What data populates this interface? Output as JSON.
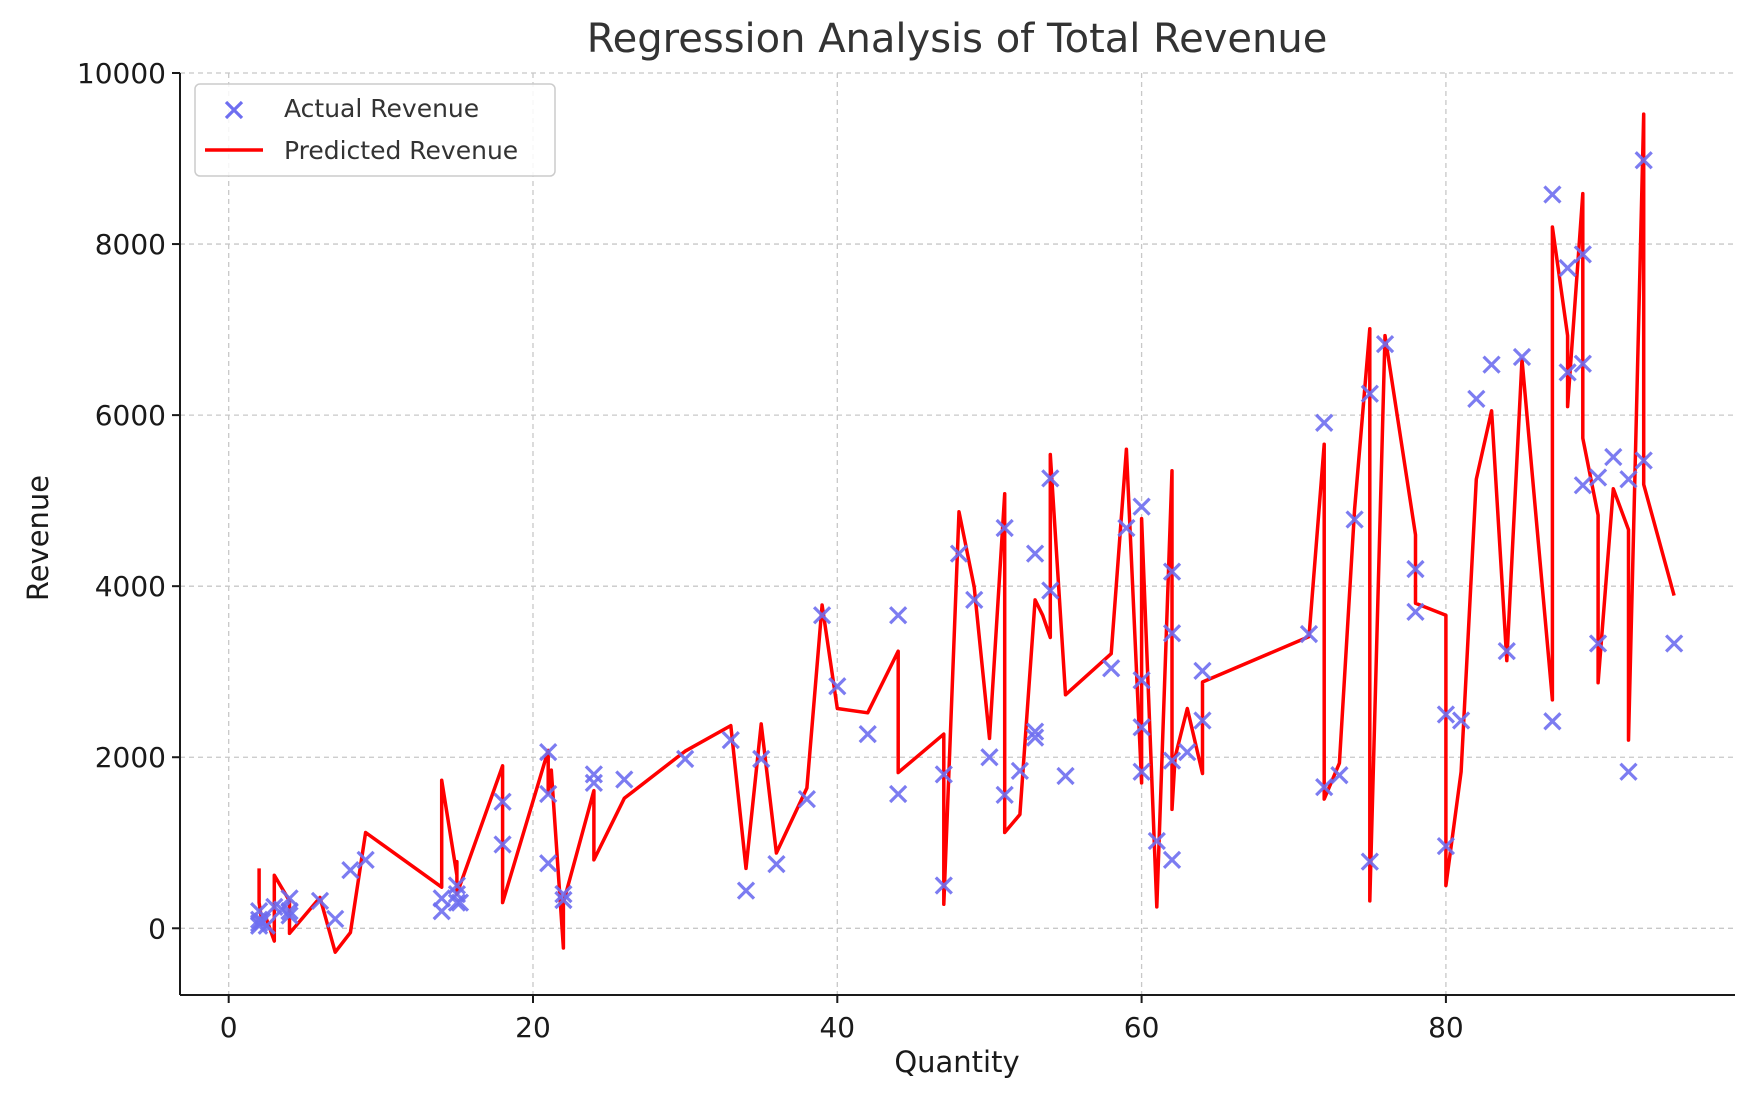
{
  "chart_data": {
    "type": "scatter",
    "title": "Regression Analysis of Total Revenue",
    "xlabel": "Quantity",
    "ylabel": "Revenue",
    "xlim": [
      -3.2,
      99
    ],
    "ylim": [
      -780,
      10000
    ],
    "xticks": [
      0,
      20,
      40,
      60,
      80
    ],
    "yticks": [
      0,
      2000,
      4000,
      6000,
      8000,
      10000
    ],
    "grid": true,
    "legend_position": "top-left",
    "colors": {
      "actual": "#6e6ef0",
      "predicted": "#ff0000"
    },
    "series": [
      {
        "name": "Actual Revenue",
        "kind": "scatter",
        "marker": "x",
        "points": [
          [
            2,
            200
          ],
          [
            2,
            100
          ],
          [
            2,
            60
          ],
          [
            2,
            30
          ],
          [
            2.2,
            80
          ],
          [
            2.5,
            30
          ],
          [
            3,
            250
          ],
          [
            3.5,
            220
          ],
          [
            4,
            350
          ],
          [
            4,
            150
          ],
          [
            4,
            200
          ],
          [
            6,
            320
          ],
          [
            7,
            110
          ],
          [
            8,
            680
          ],
          [
            9,
            800
          ],
          [
            14,
            200
          ],
          [
            14,
            350
          ],
          [
            15,
            500
          ],
          [
            15,
            300
          ],
          [
            15,
            400
          ],
          [
            15.2,
            300
          ],
          [
            18,
            1480
          ],
          [
            18,
            980
          ],
          [
            21,
            2060
          ],
          [
            21,
            1570
          ],
          [
            21,
            760
          ],
          [
            22,
            400
          ],
          [
            22,
            330
          ],
          [
            24,
            1800
          ],
          [
            24,
            1700
          ],
          [
            26,
            1740
          ],
          [
            30,
            1980
          ],
          [
            33,
            2200
          ],
          [
            34,
            440
          ],
          [
            35,
            1980
          ],
          [
            36,
            750
          ],
          [
            38,
            1510
          ],
          [
            39,
            3660
          ],
          [
            40,
            2830
          ],
          [
            42,
            2270
          ],
          [
            44,
            3660
          ],
          [
            44,
            1570
          ],
          [
            47,
            1800
          ],
          [
            47,
            500
          ],
          [
            48,
            4380
          ],
          [
            49,
            3840
          ],
          [
            50,
            2000
          ],
          [
            51,
            4680
          ],
          [
            51,
            1560
          ],
          [
            52,
            1840
          ],
          [
            53,
            4380
          ],
          [
            53,
            2300
          ],
          [
            53,
            2230
          ],
          [
            54,
            5260
          ],
          [
            54,
            3950
          ],
          [
            55,
            1780
          ],
          [
            58,
            3040
          ],
          [
            59,
            4680
          ],
          [
            60,
            4930
          ],
          [
            60,
            2900
          ],
          [
            60,
            2350
          ],
          [
            60,
            1830
          ],
          [
            61,
            1020
          ],
          [
            62,
            4170
          ],
          [
            62,
            3450
          ],
          [
            62,
            1960
          ],
          [
            62,
            800
          ],
          [
            63,
            2060
          ],
          [
            64,
            3010
          ],
          [
            64,
            2430
          ],
          [
            71,
            3440
          ],
          [
            72,
            5910
          ],
          [
            72,
            1650
          ],
          [
            73,
            1790
          ],
          [
            74,
            4780
          ],
          [
            75,
            6250
          ],
          [
            75,
            780
          ],
          [
            76,
            6830
          ],
          [
            78,
            4200
          ],
          [
            78,
            3700
          ],
          [
            80,
            2500
          ],
          [
            80,
            960
          ],
          [
            81,
            2430
          ],
          [
            82,
            6190
          ],
          [
            83,
            6590
          ],
          [
            84,
            3240
          ],
          [
            85,
            6680
          ],
          [
            87,
            8580
          ],
          [
            87,
            2420
          ],
          [
            88,
            7720
          ],
          [
            88,
            6500
          ],
          [
            89,
            7880
          ],
          [
            89,
            6600
          ],
          [
            89,
            5180
          ],
          [
            90,
            5270
          ],
          [
            90,
            3330
          ],
          [
            91,
            5510
          ],
          [
            92,
            5250
          ],
          [
            92,
            1830
          ],
          [
            93,
            8980
          ],
          [
            93,
            5470
          ],
          [
            95,
            3330
          ]
        ]
      },
      {
        "name": "Predicted Revenue",
        "kind": "line",
        "points": [
          [
            2,
            700
          ],
          [
            2,
            300
          ],
          [
            2.2,
            50
          ],
          [
            2.4,
            150
          ],
          [
            3,
            -150
          ],
          [
            3,
            620
          ],
          [
            4,
            320
          ],
          [
            4,
            -60
          ],
          [
            6,
            360
          ],
          [
            7,
            -280
          ],
          [
            8,
            -50
          ],
          [
            9,
            1120
          ],
          [
            14,
            480
          ],
          [
            14,
            1730
          ],
          [
            15,
            620
          ],
          [
            15,
            780
          ],
          [
            15,
            400
          ],
          [
            18,
            1900
          ],
          [
            18,
            300
          ],
          [
            21,
            2080
          ],
          [
            21,
            1580
          ],
          [
            21.2,
            1850
          ],
          [
            22,
            -230
          ],
          [
            22,
            300
          ],
          [
            24,
            1610
          ],
          [
            24,
            800
          ],
          [
            26,
            1520
          ],
          [
            30,
            2070
          ],
          [
            33,
            2370
          ],
          [
            34,
            700
          ],
          [
            35,
            2390
          ],
          [
            36,
            880
          ],
          [
            38,
            1640
          ],
          [
            39,
            3780
          ],
          [
            40,
            2570
          ],
          [
            42,
            2520
          ],
          [
            44,
            3240
          ],
          [
            44,
            1820
          ],
          [
            47,
            2270
          ],
          [
            47,
            280
          ],
          [
            48,
            4870
          ],
          [
            49,
            3990
          ],
          [
            50,
            2220
          ],
          [
            51,
            5080
          ],
          [
            51,
            1120
          ],
          [
            52,
            1330
          ],
          [
            53,
            3840
          ],
          [
            53.5,
            3660
          ],
          [
            54,
            3400
          ],
          [
            54,
            5540
          ],
          [
            55,
            2730
          ],
          [
            58,
            3210
          ],
          [
            59,
            5600
          ],
          [
            60,
            1700
          ],
          [
            60,
            4790
          ],
          [
            61,
            250
          ],
          [
            62,
            5350
          ],
          [
            62,
            1390
          ],
          [
            62.2,
            2000
          ],
          [
            63,
            2570
          ],
          [
            64,
            1810
          ],
          [
            64,
            2880
          ],
          [
            71,
            3410
          ],
          [
            72,
            5660
          ],
          [
            72,
            1510
          ],
          [
            73,
            1930
          ],
          [
            74,
            4900
          ],
          [
            75,
            7010
          ],
          [
            75,
            320
          ],
          [
            76,
            6930
          ],
          [
            78,
            4600
          ],
          [
            78,
            3800
          ],
          [
            80,
            3660
          ],
          [
            80,
            500
          ],
          [
            81,
            1830
          ],
          [
            82,
            5250
          ],
          [
            83,
            6050
          ],
          [
            84,
            3130
          ],
          [
            85,
            6650
          ],
          [
            87,
            2670
          ],
          [
            87,
            8200
          ],
          [
            88,
            6930
          ],
          [
            88,
            6100
          ],
          [
            89,
            8590
          ],
          [
            89,
            5730
          ],
          [
            90,
            4830
          ],
          [
            90,
            2870
          ],
          [
            91,
            5140
          ],
          [
            92,
            4660
          ],
          [
            92,
            2200
          ],
          [
            93,
            9520
          ],
          [
            93,
            5190
          ],
          [
            95,
            3890
          ]
        ]
      }
    ]
  }
}
